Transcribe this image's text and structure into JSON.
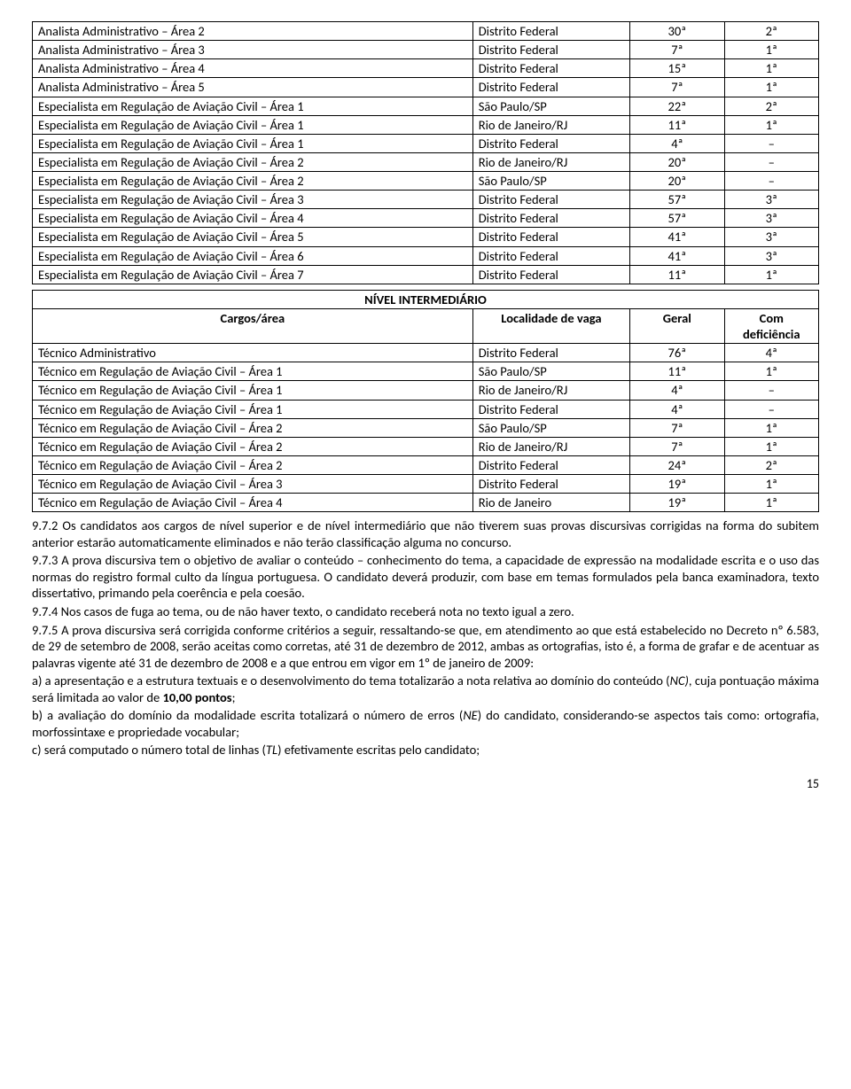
{
  "table1": {
    "col_widths": [
      "56%",
      "20%",
      "12%",
      "12%"
    ],
    "rows": [
      [
        "Analista Administrativo – Área 2",
        "Distrito Federal",
        "30ª",
        "2ª"
      ],
      [
        "Analista Administrativo – Área 3",
        "Distrito Federal",
        "7ª",
        "1ª"
      ],
      [
        "Analista Administrativo – Área 4",
        "Distrito Federal",
        "15ª",
        "1ª"
      ],
      [
        "Analista Administrativo – Área 5",
        "Distrito Federal",
        "7ª",
        "1ª"
      ],
      [
        "Especialista em Regulação de Aviação Civil – Área 1",
        "São Paulo/SP",
        "22ª",
        "2ª"
      ],
      [
        "Especialista em Regulação de Aviação Civil – Área 1",
        "Rio de Janeiro/RJ",
        "11ª",
        "1ª"
      ],
      [
        "Especialista em Regulação de Aviação Civil – Área 1",
        "Distrito Federal",
        "4ª",
        "–"
      ],
      [
        "Especialista em Regulação de Aviação Civil – Área 2",
        "Rio de Janeiro/RJ",
        "20ª",
        "–"
      ],
      [
        "Especialista em Regulação de Aviação Civil – Área 2",
        "São Paulo/SP",
        "20ª",
        "–"
      ],
      [
        "Especialista em Regulação de Aviação Civil – Área 3",
        "Distrito Federal",
        "57ª",
        "3ª"
      ],
      [
        "Especialista em Regulação de Aviação Civil – Área 4",
        "Distrito Federal",
        "57ª",
        "3ª"
      ],
      [
        "Especialista em Regulação de Aviação Civil – Área 5",
        "Distrito Federal",
        "41ª",
        "3ª"
      ],
      [
        "Especialista em Regulação de Aviação Civil – Área 6",
        "Distrito Federal",
        "41ª",
        "3ª"
      ],
      [
        "Especialista em Regulação de Aviação Civil – Área 7",
        "Distrito Federal",
        "11ª",
        "1ª"
      ]
    ]
  },
  "table2": {
    "title": "NÍVEL INTERMEDIÁRIO",
    "headers": {
      "cargo": "Cargos/área",
      "loc": "Localidade de vaga",
      "geral": "Geral",
      "def": "Com deficiência"
    },
    "col_widths": [
      "56%",
      "20%",
      "12%",
      "12%"
    ],
    "rows": [
      [
        "Técnico Administrativo",
        "Distrito Federal",
        "76ª",
        "4ª"
      ],
      [
        "Técnico em Regulação de Aviação Civil – Área 1",
        "São Paulo/SP",
        "11ª",
        "1ª"
      ],
      [
        "Técnico em Regulação de Aviação Civil – Área 1",
        "Rio de Janeiro/RJ",
        "4ª",
        "–"
      ],
      [
        "Técnico em Regulação de Aviação Civil – Área 1",
        "Distrito Federal",
        "4ª",
        "–"
      ],
      [
        "Técnico em Regulação de Aviação Civil – Área 2",
        "São Paulo/SP",
        "7ª",
        "1ª"
      ],
      [
        "Técnico em Regulação de Aviação Civil – Área 2",
        "Rio de Janeiro/RJ",
        "7ª",
        "1ª"
      ],
      [
        "Técnico em Regulação de Aviação Civil – Área 2",
        "Distrito Federal",
        "24ª",
        "2ª"
      ],
      [
        "Técnico em Regulação de Aviação Civil – Área 3",
        "Distrito Federal",
        "19ª",
        "1ª"
      ],
      [
        "Técnico em Regulação de Aviação Civil – Área 4",
        "Rio de Janeiro",
        "19ª",
        "1ª"
      ]
    ]
  },
  "paragraphs": {
    "p1": "9.7.2 Os candidatos aos cargos de nível superior e de nível intermediário que não tiverem suas provas discursivas corrigidas na forma do subitem anterior estarão automaticamente eliminados e não terão classificação alguma no concurso.",
    "p2": "9.7.3 A prova discursiva tem o objetivo de avaliar o conteúdo – conhecimento do tema, a capacidade de expressão na modalidade escrita e o uso das normas do registro formal culto da língua portuguesa. O candidato deverá produzir, com base em temas formulados pela banca examinadora, texto dissertativo, primando pela coerência e pela coesão.",
    "p3": "9.7.4 Nos casos de fuga ao tema, ou de não haver texto, o candidato receberá nota no texto igual a zero.",
    "p4": "9.7.5 A prova discursiva será corrigida conforme critérios a seguir, ressaltando-se que, em atendimento ao que está estabelecido no Decreto nº 6.583, de 29 de setembro de 2008, serão aceitas como corretas, até 31 de dezembro de 2012, ambas as ortografias, isto é, a forma de grafar e de acentuar as palavras vigente até 31 de dezembro de 2008 e a que entrou em vigor em 1º de janeiro de 2009:",
    "p5a": "a) a apresentação e a estrutura textuais e o desenvolvimento do tema totalizarão a nota relativa ao domínio do conteúdo (",
    "p5i": "NC)",
    "p5b": ", cuja pontuação máxima será limitada ao valor de ",
    "p5bold": "10,00 pontos",
    "p5c": ";",
    "p6a": "b) a avaliação do domínio da modalidade escrita totalizará o número de erros (",
    "p6i": "NE",
    "p6b": ") do candidato, considerando-se aspectos tais como: ortografia, morfossintaxe e propriedade vocabular;",
    "p7a": "c) será computado o número total de linhas (",
    "p7i": "TL",
    "p7b": ") efetivamente escritas pelo candidato;"
  },
  "pagenum": "15"
}
